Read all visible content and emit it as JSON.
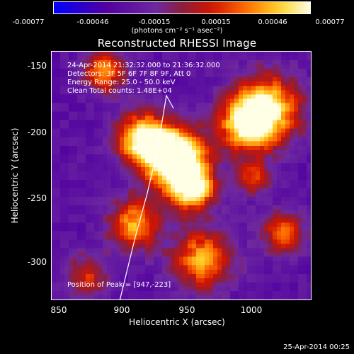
{
  "colorbar": {
    "ticks": [
      "-0.00077",
      "-0.00046",
      "-0.00015",
      "0.00015",
      "0.00046",
      "0.00077"
    ],
    "unit_label": "(photons cm⁻² s⁻¹ asec⁻²)"
  },
  "title": "Reconstructed RHESSI Image",
  "info": {
    "time_range": "24-Apr-2014 21:32:32.000 to 21:36:32.000",
    "detectors": "Detectors: 3F 5F 6F 7F 8F 9F, Att 0",
    "energy_range": "Energy Range: 25.0 - 50.0 keV",
    "clean_counts": "Clean     Total counts: 1.48E+04",
    "peak_position": "Position of Peak = [947,-223]"
  },
  "axes": {
    "xlabel": "Heliocentric X (arcsec)",
    "ylabel": "Heliocentric Y (arcsec)",
    "xticks": [
      "850",
      "900",
      "950",
      "1000"
    ],
    "yticks": [
      "-150",
      "-200",
      "-250",
      "-300"
    ],
    "xrange": [
      847,
      1038
    ],
    "yrange": [
      -330,
      -138
    ]
  },
  "date_stamp": "25-Apr-2014 00:25",
  "colors": {
    "colormap": [
      "#0000ff",
      "#4b0082",
      "#7a2c9c",
      "#5a2aa0",
      "#8b1a1a",
      "#e02000",
      "#ff7f00",
      "#ffd700",
      "#ffffcc"
    ]
  }
}
